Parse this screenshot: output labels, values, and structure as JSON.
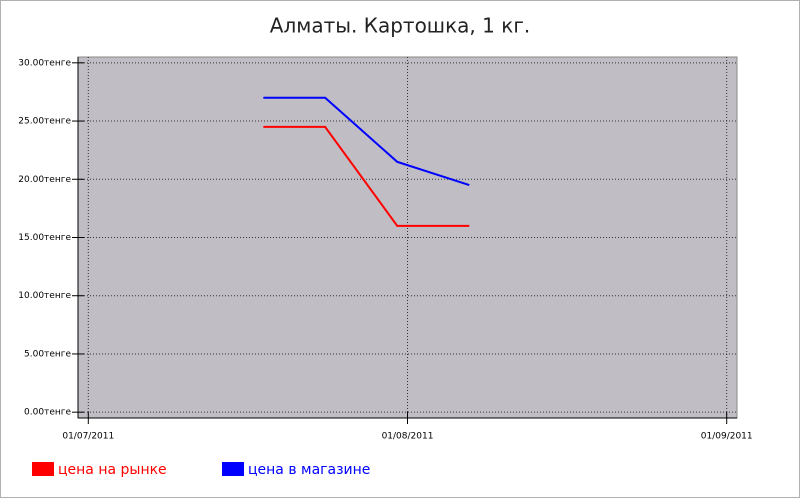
{
  "chart_data": {
    "type": "line",
    "title": "Алматы. Картошка, 1 кг.",
    "x": [
      "2011-07-18",
      "2011-07-24",
      "2011-07-31",
      "2011-08-07"
    ],
    "series": [
      {
        "name": "цена на рынке",
        "color": "#ff0000",
        "values": [
          24.5,
          24.5,
          16,
          16
        ]
      },
      {
        "name": "цена в магазине",
        "color": "#0000ff",
        "values": [
          27,
          27,
          21.5,
          19.5
        ]
      }
    ],
    "xlim": [
      "2011-06-30",
      "2011-09-02"
    ],
    "xticks": [
      {
        "value": "2011-07-01",
        "label": "01/07/2011"
      },
      {
        "value": "2011-08-01",
        "label": "01/08/2011"
      },
      {
        "value": "2011-09-01",
        "label": "01/09/2011"
      }
    ],
    "ylim": [
      -0.5,
      30.5
    ],
    "yticks": [
      {
        "value": 0,
        "label": "0.00тенге"
      },
      {
        "value": 5,
        "label": "5.00тенге"
      },
      {
        "value": 10,
        "label": "10.00тенге"
      },
      {
        "value": 15,
        "label": "15.00тенге"
      },
      {
        "value": 20,
        "label": "20.00тенге"
      },
      {
        "value": 25,
        "label": "25.00тенге"
      },
      {
        "value": 30,
        "label": "30.00тенге"
      }
    ],
    "grid": true,
    "legend": "bottom-left",
    "plot_background": "#c0bec4"
  }
}
